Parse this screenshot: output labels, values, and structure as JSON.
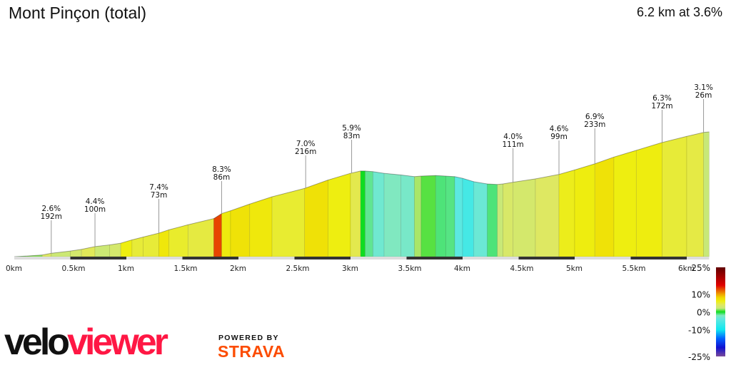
{
  "header": {
    "title": "Mont Pinçon (total)",
    "summary": "6.2 km at 3.6%"
  },
  "chart_data": {
    "type": "area",
    "title": "Mont Pinçon (total)",
    "subtitle": "6.2 km at 3.6%",
    "xlabel": "",
    "ylabel": "",
    "xlim": [
      0,
      6.2
    ],
    "x_unit": "km",
    "x_ticks": [
      "0km",
      "0.5km",
      "1km",
      "1.5km",
      "2km",
      "2.5km",
      "3km",
      "3.5km",
      "4km",
      "4.5km",
      "5km",
      "5.5km",
      "6km"
    ],
    "profile_km_m": [
      [
        0,
        0
      ],
      [
        0.1,
        1
      ],
      [
        0.25,
        3
      ],
      [
        0.33,
        6
      ],
      [
        0.5,
        10
      ],
      [
        0.6,
        13
      ],
      [
        0.72,
        18
      ],
      [
        0.85,
        21
      ],
      [
        0.95,
        24
      ],
      [
        1.05,
        30
      ],
      [
        1.15,
        35
      ],
      [
        1.29,
        42
      ],
      [
        1.38,
        48
      ],
      [
        1.55,
        57
      ],
      [
        1.78,
        68
      ],
      [
        1.85,
        77
      ],
      [
        1.93,
        82
      ],
      [
        2.1,
        94
      ],
      [
        2.3,
        107
      ],
      [
        2.59,
        122
      ],
      [
        2.8,
        137
      ],
      [
        3.0,
        149
      ],
      [
        3.09,
        153
      ],
      [
        3.13,
        153
      ],
      [
        3.2,
        152
      ],
      [
        3.3,
        149
      ],
      [
        3.45,
        146
      ],
      [
        3.57,
        143
      ],
      [
        3.63,
        144
      ],
      [
        3.76,
        145
      ],
      [
        3.85,
        144
      ],
      [
        3.93,
        143
      ],
      [
        4.0,
        140
      ],
      [
        4.1,
        134
      ],
      [
        4.22,
        130
      ],
      [
        4.31,
        129
      ],
      [
        4.36,
        130
      ],
      [
        4.45,
        133
      ],
      [
        4.65,
        139
      ],
      [
        4.86,
        147
      ],
      [
        5.0,
        155
      ],
      [
        5.18,
        166
      ],
      [
        5.35,
        178
      ],
      [
        5.55,
        190
      ],
      [
        5.78,
        204
      ],
      [
        6.0,
        215
      ],
      [
        6.15,
        222
      ],
      [
        6.2,
        223
      ]
    ],
    "annotations": [
      {
        "km": 0.33,
        "grade": "2.6%",
        "length": "192m"
      },
      {
        "km": 0.72,
        "grade": "4.4%",
        "length": "100m"
      },
      {
        "km": 1.29,
        "grade": "7.4%",
        "length": "73m"
      },
      {
        "km": 1.85,
        "grade": "8.3%",
        "length": "86m"
      },
      {
        "km": 2.6,
        "grade": "7.0%",
        "length": "216m"
      },
      {
        "km": 3.01,
        "grade": "5.9%",
        "length": "83m"
      },
      {
        "km": 4.45,
        "grade": "4.0%",
        "length": "111m"
      },
      {
        "km": 4.86,
        "grade": "4.6%",
        "length": "99m"
      },
      {
        "km": 5.18,
        "grade": "6.9%",
        "length": "233m"
      },
      {
        "km": 5.78,
        "grade": "6.3%",
        "length": "172m"
      },
      {
        "km": 6.15,
        "grade": "3.1%",
        "length": "26m"
      }
    ],
    "legend": {
      "labels": [
        "25%",
        "10%",
        "0%",
        "-10%",
        "-25%"
      ],
      "range": [
        -25,
        25
      ],
      "color_stops": [
        [
          -25,
          "#7a4a9a"
        ],
        [
          -20,
          "#1010d0"
        ],
        [
          -15,
          "#0060ff"
        ],
        [
          -10,
          "#10e8f0"
        ],
        [
          -4,
          "#60e8e0"
        ],
        [
          -2,
          "#80e8c0"
        ],
        [
          0,
          "#10dd20"
        ],
        [
          2,
          "#c8e878"
        ],
        [
          4,
          "#e0e860"
        ],
        [
          6,
          "#eeee10"
        ],
        [
          8,
          "#f0d800"
        ],
        [
          10,
          "#f0a000"
        ],
        [
          15,
          "#e00000"
        ],
        [
          25,
          "#600000"
        ]
      ]
    },
    "grid": false
  },
  "branding": {
    "logo_left": "velo",
    "logo_right": "viewer",
    "powered_by": "POWERED BY",
    "strava": "STRAVA"
  }
}
